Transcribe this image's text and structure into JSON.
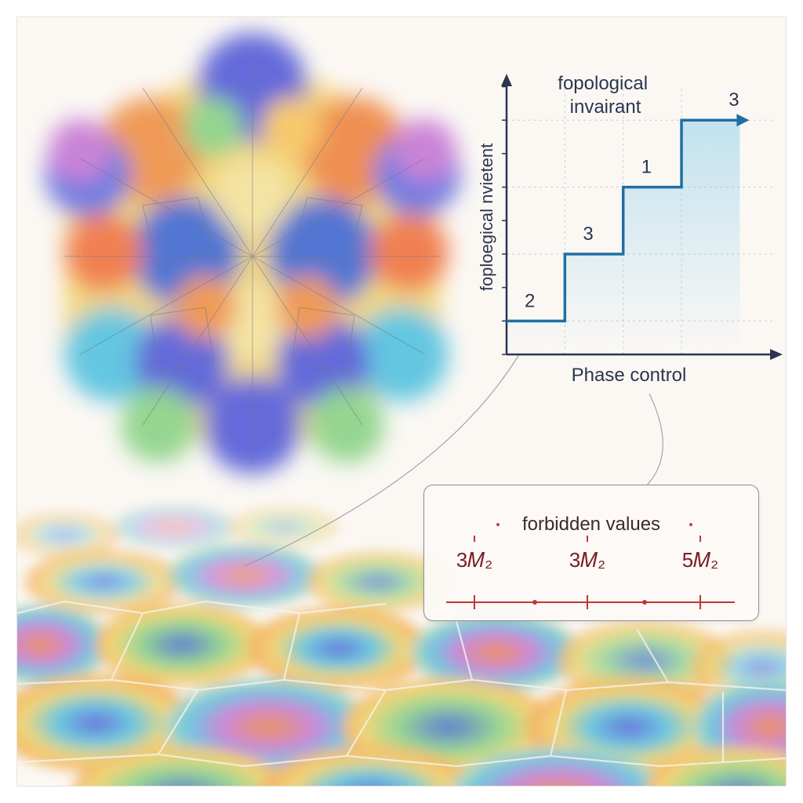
{
  "chart_data": {
    "type": "line",
    "title": "fopological invairant",
    "xlabel": "Phase control",
    "ylabel": "foploegical nvietent",
    "step_points": [
      [
        0,
        0
      ],
      [
        1,
        0
      ],
      [
        1,
        1
      ],
      [
        2,
        1
      ],
      [
        2,
        2
      ],
      [
        3,
        2
      ],
      [
        3,
        3
      ],
      [
        4,
        3
      ]
    ],
    "step_labels": [
      {
        "text": "2",
        "x": 0.4,
        "y": 0
      },
      {
        "text": "3",
        "x": 1.4,
        "y": 1
      },
      {
        "text": "1",
        "x": 2.4,
        "y": 2
      },
      {
        "text": "3",
        "x": 3.9,
        "y": 3
      }
    ],
    "xlim": [
      0,
      4.6
    ],
    "ylim": [
      -0.5,
      3.6
    ],
    "grid": true,
    "line_color": "#1f6fa3"
  },
  "forbidden": {
    "title": "forbidden values",
    "labels": [
      "3ₐ₂",
      "3ₐ₂",
      "5ₐ₂"
    ],
    "label_text": [
      "3𝑀₂",
      "3𝑀₂",
      "5𝑀₂"
    ],
    "color": "#c0343a"
  },
  "colors": {
    "blue": "#4a6fd1",
    "cyan": "#5cc4e0",
    "yellow": "#f4d36a",
    "orange": "#ef9650",
    "magenta": "#c77dd6",
    "green": "#8fd48a"
  }
}
